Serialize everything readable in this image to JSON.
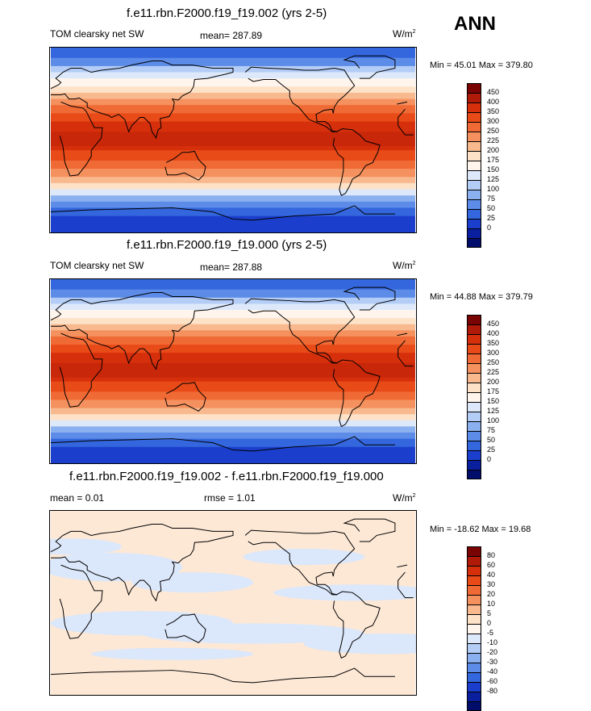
{
  "season": "ANN",
  "panels": [
    {
      "title": "f.e11.rbn.F2000.f19_f19.002 (yrs 2-5)",
      "left_label": "TOM clearsky net SW",
      "center_label": "mean= 287.89",
      "units_base": "W/m",
      "units_exp": "2",
      "minmax": "Min =  45.01 Max = 379.80",
      "type": "field"
    },
    {
      "title": "f.e11.rbn.F2000.f19_f19.000 (yrs 2-5)",
      "left_label": "TOM clearsky net SW",
      "center_label": "mean= 287.88",
      "units_base": "W/m",
      "units_exp": "2",
      "minmax": "Min =  44.88 Max = 379.79",
      "type": "field"
    },
    {
      "title": "f.e11.rbn.F2000.f19_f19.002 - f.e11.rbn.F2000.f19_f19.000",
      "left_label": "mean =   0.01",
      "center_label": "rmse =   1.01",
      "units_base": "W/m",
      "units_exp": "2",
      "minmax": "Min = -18.62 Max =  19.68",
      "type": "diff"
    }
  ],
  "colorbar_field": {
    "labels": [
      "450",
      "400",
      "350",
      "300",
      "250",
      "225",
      "200",
      "175",
      "150",
      "125",
      "100",
      "75",
      "50",
      "25",
      "0"
    ],
    "colors": [
      "#7a0403",
      "#b01a08",
      "#d62f0c",
      "#e84a18",
      "#f06a35",
      "#f5915e",
      "#f9b98f",
      "#fde2c8",
      "#fff5ec",
      "#dde9fb",
      "#b4cdf6",
      "#8ab0f0",
      "#5c8ce8",
      "#3466dd",
      "#1b3fcc",
      "#0a1f9e",
      "#000d6b"
    ]
  },
  "colorbar_diff": {
    "labels": [
      "80",
      "60",
      "40",
      "30",
      "20",
      "10",
      "5",
      "0",
      "-5",
      "-10",
      "-20",
      "-30",
      "-40",
      "-60",
      "-80"
    ],
    "colors": [
      "#7a0403",
      "#b01a08",
      "#d62f0c",
      "#e84a18",
      "#f06a35",
      "#f5915e",
      "#f9b98f",
      "#fde2c8",
      "#fff5ec",
      "#dde9fb",
      "#b4cdf6",
      "#8ab0f0",
      "#5c8ce8",
      "#3466dd",
      "#1b3fcc",
      "#0a1f9e",
      "#000d6b"
    ]
  }
}
